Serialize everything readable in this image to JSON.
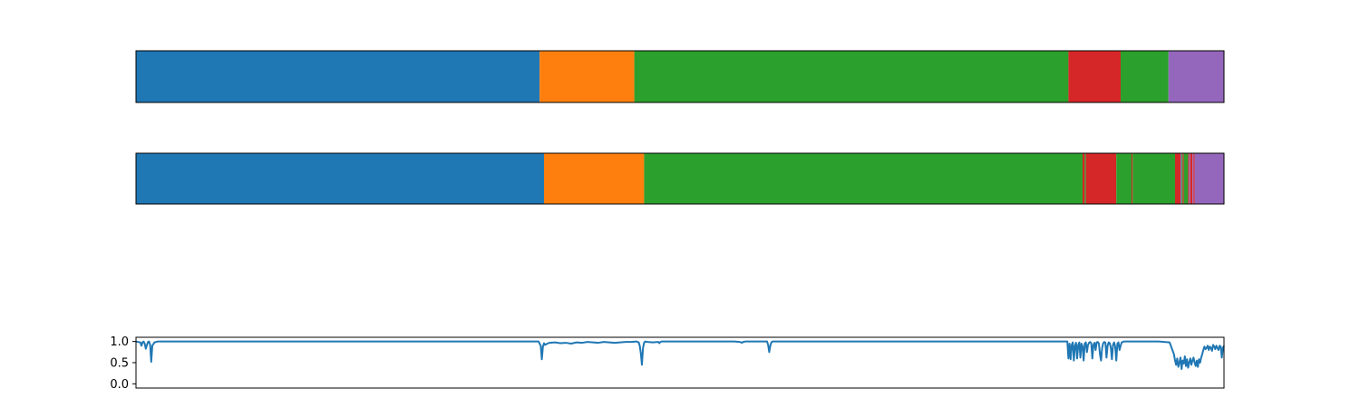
{
  "chart_data": [
    {
      "type": "bar",
      "orientation": "horizontal-segments",
      "title": "",
      "xlim": [
        0,
        1000
      ],
      "grid": false,
      "axes_ticks": false,
      "segments": [
        {
          "start": 0,
          "end": 371,
          "color": "#1f77b4"
        },
        {
          "start": 371,
          "end": 458,
          "color": "#ff7f0e"
        },
        {
          "start": 458,
          "end": 857,
          "color": "#2ca02c"
        },
        {
          "start": 857,
          "end": 905,
          "color": "#d62728"
        },
        {
          "start": 905,
          "end": 949,
          "color": "#2ca02c"
        },
        {
          "start": 949,
          "end": 1000,
          "color": "#9467bd"
        }
      ]
    },
    {
      "type": "bar",
      "orientation": "horizontal-segments",
      "title": "",
      "xlim": [
        0,
        1000
      ],
      "grid": false,
      "axes_ticks": false,
      "segments": [
        {
          "start": 0,
          "end": 375,
          "color": "#1f77b4"
        },
        {
          "start": 375,
          "end": 467,
          "color": "#ff7f0e"
        },
        {
          "start": 467,
          "end": 870,
          "color": "#2ca02c"
        },
        {
          "start": 870,
          "end": 872,
          "color": "#d62728"
        },
        {
          "start": 872,
          "end": 873,
          "color": "#2ca02c"
        },
        {
          "start": 873,
          "end": 901,
          "color": "#d62728"
        },
        {
          "start": 901,
          "end": 915,
          "color": "#2ca02c"
        },
        {
          "start": 915,
          "end": 916,
          "color": "#d62728"
        },
        {
          "start": 916,
          "end": 955,
          "color": "#2ca02c"
        },
        {
          "start": 955,
          "end": 960,
          "color": "#d62728"
        },
        {
          "start": 960,
          "end": 961,
          "color": "#9467bd"
        },
        {
          "start": 961,
          "end": 962,
          "color": "#2ca02c"
        },
        {
          "start": 962,
          "end": 963,
          "color": "#d62728"
        },
        {
          "start": 963,
          "end": 967,
          "color": "#2ca02c"
        },
        {
          "start": 967,
          "end": 968,
          "color": "#d62728"
        },
        {
          "start": 968,
          "end": 969,
          "color": "#9467bd"
        },
        {
          "start": 969,
          "end": 971,
          "color": "#d62728"
        },
        {
          "start": 971,
          "end": 972,
          "color": "#9467bd"
        },
        {
          "start": 972,
          "end": 973,
          "color": "#d62728"
        },
        {
          "start": 973,
          "end": 1000,
          "color": "#9467bd"
        }
      ]
    },
    {
      "type": "line",
      "title": "",
      "xlabel": "",
      "ylabel": "",
      "xlim": [
        0,
        1000
      ],
      "ylim": [
        -0.1,
        1.1
      ],
      "yticks": [
        0.0,
        0.5,
        1.0
      ],
      "ytick_labels": [
        "0.0",
        "0.5",
        "1.0"
      ],
      "grid": false,
      "series": [
        {
          "color": "#1f77b4",
          "x": [
            0,
            4,
            5,
            6,
            7,
            8,
            9,
            11,
            12,
            13,
            14,
            15,
            17,
            20,
            40,
            100,
            200,
            300,
            370,
            372,
            373,
            374,
            375,
            376,
            378,
            380,
            385,
            390,
            395,
            400,
            405,
            410,
            415,
            420,
            425,
            430,
            435,
            440,
            445,
            450,
            455,
            460,
            462,
            463,
            464,
            465,
            466,
            467,
            468,
            470,
            475,
            480,
            481,
            482,
            483,
            485,
            490,
            500,
            550,
            555,
            556,
            557,
            558,
            560,
            565,
            580,
            581,
            582,
            583,
            584,
            585,
            587,
            590,
            650,
            700,
            800,
            855,
            856,
            857,
            858,
            859,
            860,
            861,
            862,
            863,
            864,
            865,
            866,
            867,
            868,
            869,
            870,
            871,
            872,
            873,
            874,
            875,
            876,
            877,
            878,
            879,
            880,
            881,
            882,
            883,
            884,
            885,
            886,
            887,
            888,
            889,
            890,
            891,
            892,
            893,
            894,
            895,
            896,
            897,
            898,
            899,
            900,
            901,
            902,
            903,
            904,
            905,
            906,
            907,
            908,
            910,
            915,
            920,
            930,
            940,
            950,
            954,
            955,
            956,
            957,
            958,
            959,
            960,
            961,
            962,
            963,
            964,
            965,
            966,
            967,
            968,
            969,
            970,
            971,
            972,
            973,
            974,
            975,
            976,
            977,
            978,
            979,
            980,
            981,
            982,
            983,
            984,
            985,
            986,
            987,
            988,
            989,
            990,
            991,
            992,
            993,
            994,
            995,
            996,
            997,
            998,
            999,
            1000
          ],
          "y": [
            1.0,
            0.98,
            0.9,
            0.98,
            1.0,
            0.95,
            0.83,
            0.99,
            1.0,
            0.92,
            0.52,
            0.9,
            0.98,
            1.0,
            1.0,
            1.0,
            1.0,
            1.0,
            1.0,
            0.9,
            0.58,
            0.88,
            0.96,
            0.92,
            0.95,
            0.97,
            0.98,
            0.96,
            0.97,
            0.95,
            0.98,
            0.97,
            0.99,
            0.98,
            0.97,
            0.99,
            0.98,
            0.97,
            0.98,
            0.99,
            0.99,
            1.0,
            0.98,
            0.9,
            0.72,
            0.45,
            0.85,
            0.97,
            1.0,
            0.99,
            0.98,
            0.99,
            0.96,
            0.99,
            1.0,
            1.0,
            1.0,
            1.0,
            1.0,
            0.99,
            0.98,
            0.97,
            0.99,
            1.0,
            1.0,
            1.0,
            0.92,
            0.75,
            0.9,
            0.98,
            1.0,
            1.0,
            1.0,
            1.0,
            1.0,
            1.0,
            1.0,
            1.0,
            0.6,
            0.95,
            0.58,
            0.92,
            0.98,
            0.55,
            0.9,
            0.97,
            0.6,
            0.92,
            0.98,
            0.62,
            0.95,
            0.88,
            0.55,
            0.95,
            0.98,
            0.75,
            0.92,
            0.97,
            0.99,
            0.96,
            0.6,
            0.92,
            0.97,
            0.8,
            0.98,
            0.99,
            0.95,
            0.7,
            0.55,
            0.85,
            0.96,
            0.99,
            0.97,
            0.62,
            0.9,
            0.98,
            0.96,
            0.85,
            0.58,
            0.92,
            0.98,
            0.88,
            0.55,
            0.95,
            0.98,
            0.8,
            0.9,
            0.98,
            0.99,
            1.0,
            1.0,
            1.0,
            1.0,
            1.0,
            1.0,
            0.98,
            0.7,
            0.55,
            0.45,
            0.6,
            0.4,
            0.5,
            0.62,
            0.35,
            0.55,
            0.48,
            0.65,
            0.42,
            0.58,
            0.38,
            0.5,
            0.6,
            0.45,
            0.55,
            0.62,
            0.5,
            0.42,
            0.55,
            0.4,
            0.58,
            0.5,
            0.62,
            0.7,
            0.8,
            0.88,
            0.82,
            0.85,
            0.9,
            0.8,
            0.88,
            0.85,
            0.78,
            0.92,
            0.88,
            0.82,
            0.9,
            0.85,
            0.8,
            0.9,
            0.88,
            0.62,
            0.85,
            0.9
          ]
        }
      ]
    }
  ]
}
